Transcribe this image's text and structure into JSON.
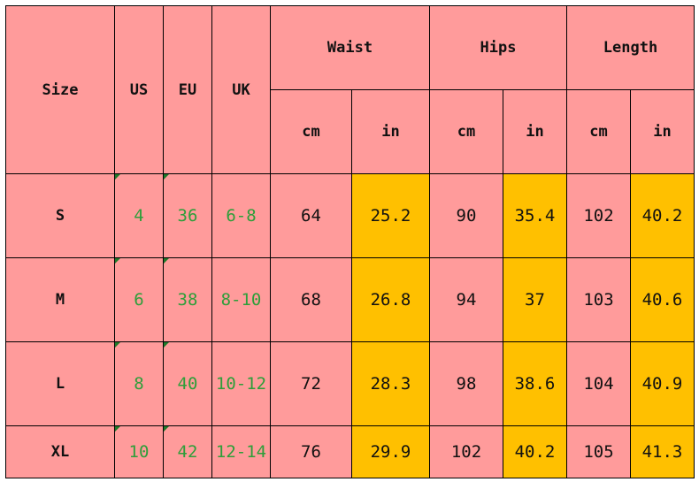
{
  "headers": {
    "size": "Size",
    "us": "US",
    "eu": "EU",
    "uk": "UK",
    "waist": "Waist",
    "hips": "Hips",
    "length": "Length",
    "cm": "cm",
    "in": "in"
  },
  "rows": [
    {
      "size": "S",
      "us": "4",
      "eu": "36",
      "uk": "6-8",
      "waist_cm": "64",
      "waist_in": "25.2",
      "hips_cm": "90",
      "hips_in": "35.4",
      "length_cm": "102",
      "length_in": "40.2"
    },
    {
      "size": "M",
      "us": "6",
      "eu": "38",
      "uk": "8-10",
      "waist_cm": "68",
      "waist_in": "26.8",
      "hips_cm": "94",
      "hips_in": "37",
      "length_cm": "103",
      "length_in": "40.6"
    },
    {
      "size": "L",
      "us": "8",
      "eu": "40",
      "uk": "10-12",
      "waist_cm": "72",
      "waist_in": "28.3",
      "hips_cm": "98",
      "hips_in": "38.6",
      "length_cm": "104",
      "length_in": "40.9"
    },
    {
      "size": "XL",
      "us": "10",
      "eu": "42",
      "uk": "12-14",
      "waist_cm": "76",
      "waist_in": "29.9",
      "hips_cm": "102",
      "hips_in": "40.2",
      "length_cm": "105",
      "length_in": "41.3"
    }
  ],
  "colors": {
    "cell_fill": "#ff9b9b",
    "inch_fill": "#ffc000",
    "region_text": "#2e9e3a",
    "grid_line": "#000000"
  }
}
